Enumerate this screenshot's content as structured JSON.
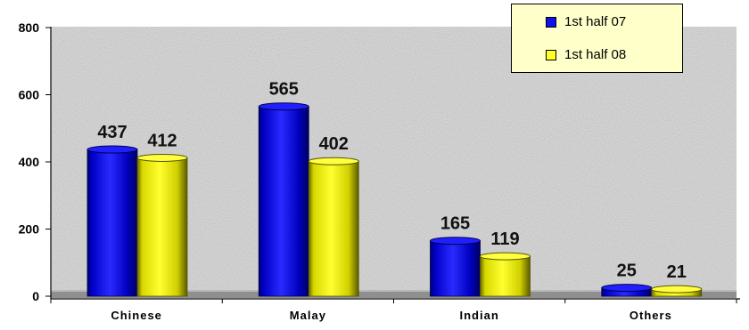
{
  "chart_data": {
    "type": "bar",
    "categories": [
      "Chinese",
      "Malay",
      "Indian",
      "Others"
    ],
    "series": [
      {
        "name": "1st half 07",
        "color": "#1010ee",
        "values": [
          437,
          565,
          165,
          25
        ]
      },
      {
        "name": "1st half 08",
        "color": "#ffff22",
        "values": [
          412,
          402,
          119,
          21
        ]
      }
    ],
    "data_labels": [
      [
        "437",
        "565",
        "165",
        "25"
      ],
      [
        "412",
        "402",
        "119",
        "21"
      ]
    ],
    "ylim": [
      0,
      800
    ],
    "yticks": [
      0,
      200,
      400,
      600,
      800
    ],
    "ytick_labels": [
      "0",
      "200",
      "400",
      "600",
      "800"
    ],
    "xlabel": "",
    "ylabel": "",
    "title": "",
    "legend_position": "top-right",
    "grid": false,
    "style": "3d-cylinder",
    "background": "textured-gray"
  }
}
